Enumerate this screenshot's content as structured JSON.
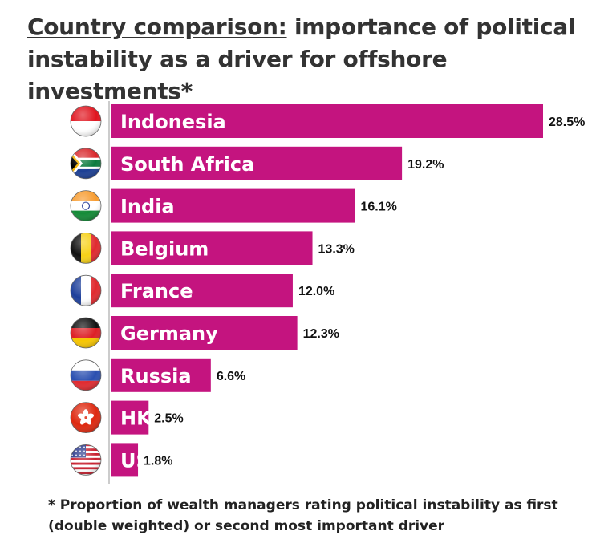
{
  "title": {
    "prefix": "Country comparison:",
    "rest": " importance of political instability as a driver for offshore investments*"
  },
  "footnote": "* Proportion of wealth managers rating political instability as first (double weighted) or second most important driver",
  "colors": {
    "bar": "#c4147f",
    "axis": "#999999"
  },
  "chart_data": {
    "type": "bar",
    "orientation": "horizontal",
    "categories": [
      "Indonesia",
      "South Africa",
      "India",
      "Belgium",
      "France",
      "Germany",
      "Russia",
      "HK",
      "US"
    ],
    "values": [
      28.5,
      19.2,
      16.1,
      13.3,
      12.0,
      12.3,
      6.6,
      2.5,
      1.8
    ],
    "value_labels": [
      "28.5%",
      "19.2%",
      "16.1%",
      "13.3%",
      "12.0%",
      "12.3%",
      "6.6%",
      "2.5%",
      "1.8%"
    ],
    "flags": [
      "indonesia-flag-icon",
      "south-africa-flag-icon",
      "india-flag-icon",
      "belgium-flag-icon",
      "france-flag-icon",
      "germany-flag-icon",
      "russia-flag-icon",
      "hong-kong-flag-icon",
      "us-flag-icon"
    ],
    "xlim": [
      0,
      28.5
    ],
    "grid": false,
    "legend": "none"
  }
}
